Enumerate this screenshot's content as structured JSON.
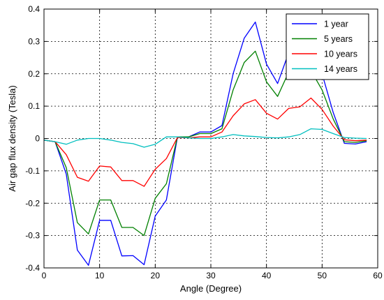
{
  "chart_data": {
    "type": "line",
    "title": "",
    "xlabel": "Angle (Degree)",
    "ylabel": "Air gap flux density (Tesla)",
    "xlim": [
      0,
      60
    ],
    "ylim": [
      -0.4,
      0.4
    ],
    "xticks": [
      "0",
      "10",
      "20",
      "30",
      "40",
      "50",
      "60"
    ],
    "yticks": [
      "0.4",
      "0.3",
      "0.2",
      "0.1",
      "0",
      "-0.1",
      "-0.2",
      "-0.3",
      "-0.4"
    ],
    "grid": true,
    "legend_position": "top-right",
    "x": [
      0,
      2,
      4,
      6,
      8,
      10,
      12,
      14,
      16,
      18,
      20,
      22,
      24,
      26,
      28,
      30,
      32,
      34,
      36,
      38,
      40,
      42,
      44,
      46,
      48,
      50,
      52,
      54,
      56,
      58
    ],
    "series": [
      {
        "name": "1 year",
        "color": "#0000ff",
        "values": [
          -0.005,
          -0.01,
          -0.11,
          -0.345,
          -0.392,
          -0.253,
          -0.253,
          -0.363,
          -0.362,
          -0.39,
          -0.24,
          -0.19,
          0.005,
          0.005,
          0.02,
          0.02,
          0.04,
          0.2,
          0.31,
          0.36,
          0.23,
          0.17,
          0.265,
          0.27,
          0.27,
          0.2,
          0.08,
          -0.015,
          -0.017,
          -0.01
        ]
      },
      {
        "name": "5 years",
        "color": "#008000",
        "values": [
          -0.005,
          -0.01,
          -0.09,
          -0.26,
          -0.295,
          -0.19,
          -0.19,
          -0.275,
          -0.275,
          -0.3,
          -0.185,
          -0.14,
          0.005,
          0.005,
          0.015,
          0.015,
          0.03,
          0.15,
          0.235,
          0.27,
          0.175,
          0.13,
          0.205,
          0.205,
          0.21,
          0.15,
          0.06,
          -0.01,
          -0.012,
          -0.007
        ]
      },
      {
        "name": "10 years",
        "color": "#ff0000",
        "values": [
          -0.005,
          -0.01,
          -0.05,
          -0.12,
          -0.132,
          -0.085,
          -0.088,
          -0.13,
          -0.13,
          -0.148,
          -0.095,
          -0.062,
          0.003,
          0.002,
          0.005,
          0.005,
          0.02,
          0.07,
          0.107,
          0.12,
          0.078,
          0.06,
          0.093,
          0.098,
          0.125,
          0.09,
          0.038,
          -0.004,
          -0.007,
          -0.005
        ]
      },
      {
        "name": "14 years",
        "color": "#00bfbf",
        "values": [
          -0.005,
          -0.01,
          -0.018,
          -0.005,
          0.0,
          0.0,
          -0.005,
          -0.012,
          -0.016,
          -0.027,
          -0.018,
          0.005,
          0.005,
          0.002,
          0.0,
          0.0,
          0.005,
          0.012,
          0.008,
          0.006,
          0.003,
          0.002,
          0.005,
          0.012,
          0.03,
          0.028,
          0.015,
          0.003,
          0.001,
          0.0
        ]
      }
    ]
  }
}
